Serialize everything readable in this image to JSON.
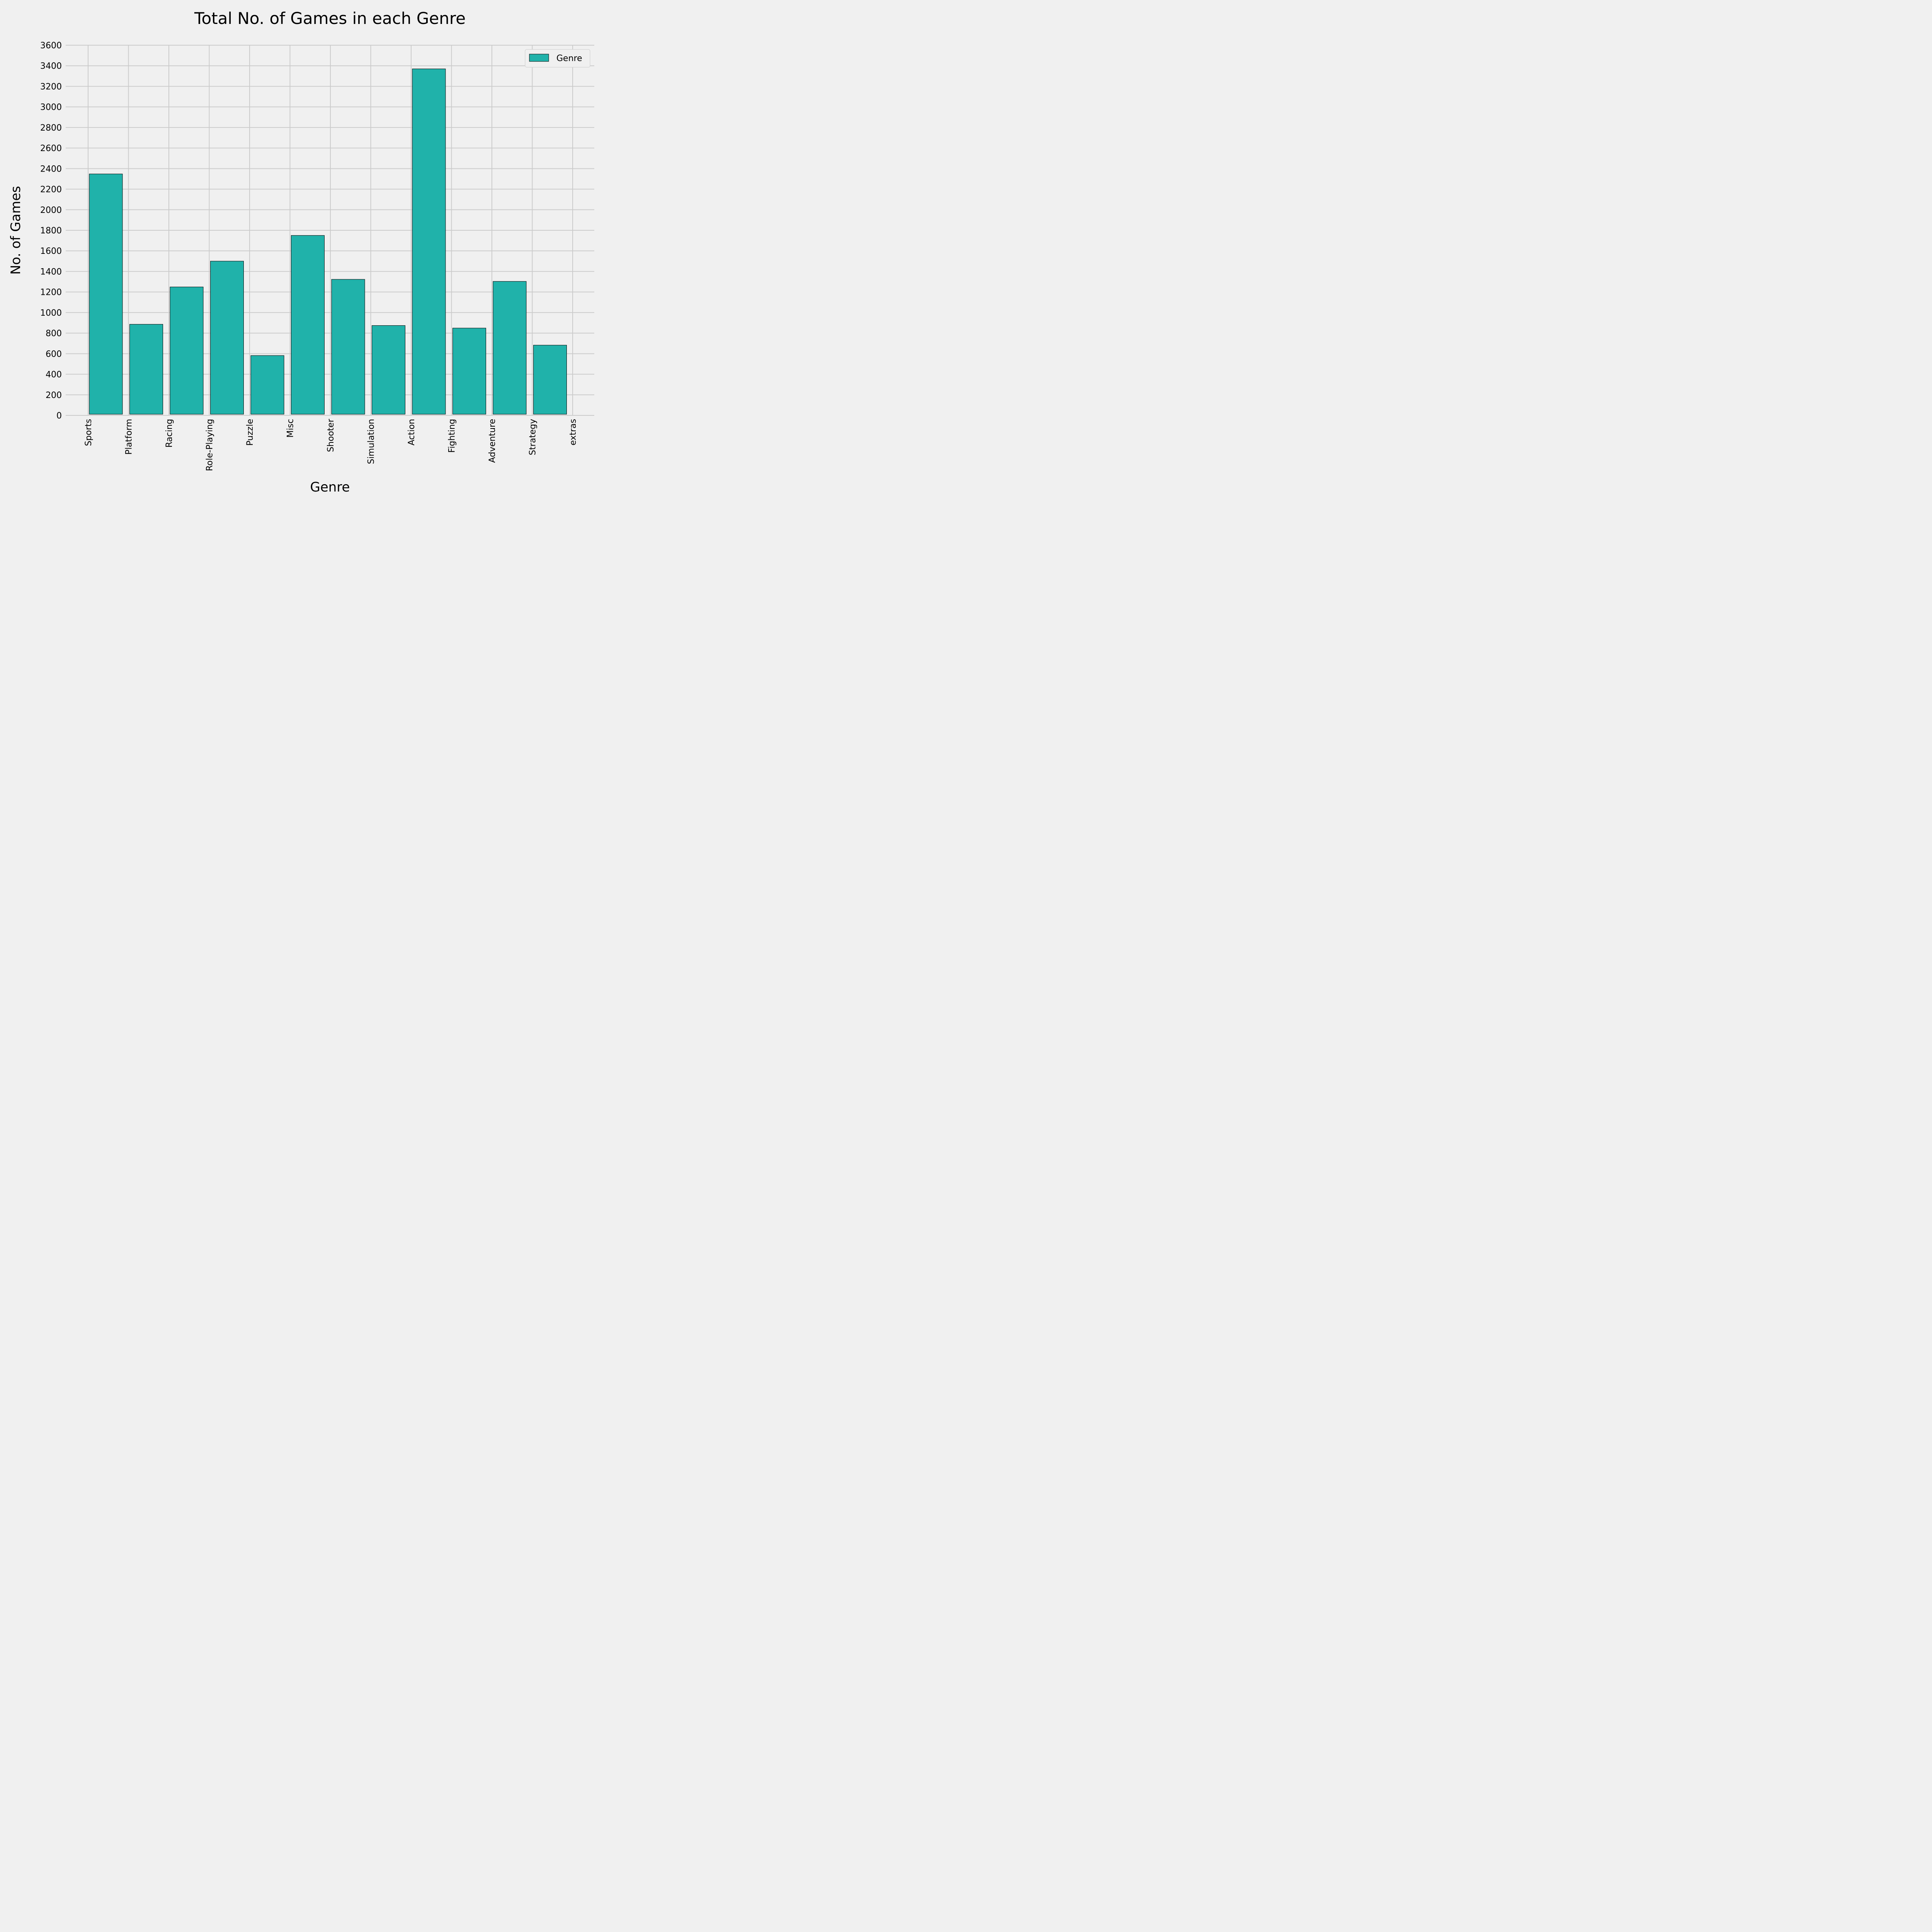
{
  "colors": {
    "background": "#f0f0f0",
    "bar_fill": "#20b2aa",
    "bar_stroke": "#000000",
    "grid": "#cbcbcb"
  },
  "chart_data": {
    "type": "bar",
    "title": "Total No. of Games in each Genre",
    "xlabel": "Genre",
    "ylabel": "No. of Games",
    "x_tick_labels": [
      "Sports",
      "Platform",
      "Racing",
      "Role-Playing",
      "Puzzle",
      "Misc",
      "Shooter",
      "Simulation",
      "Action",
      "Fighting",
      "Adventure",
      "Strategy",
      "extras"
    ],
    "categories": [
      "Sports",
      "Platform",
      "Racing",
      "Role-Playing",
      "Puzzle",
      "Misc",
      "Shooter",
      "Simulation",
      "Action",
      "Fighting",
      "Adventure",
      "Strategy"
    ],
    "series": [
      {
        "name": "Genre",
        "values": [
          2348,
          886,
          1249,
          1500,
          582,
          1750,
          1323,
          874,
          3370,
          849,
          1303,
          683
        ]
      }
    ],
    "ylim": [
      0,
      3600
    ],
    "yticks": [
      0,
      200,
      400,
      600,
      800,
      1000,
      1200,
      1400,
      1600,
      1800,
      2000,
      2200,
      2400,
      2600,
      2800,
      3000,
      3200,
      3400,
      3600
    ],
    "grid": true,
    "legend": "top-right"
  }
}
